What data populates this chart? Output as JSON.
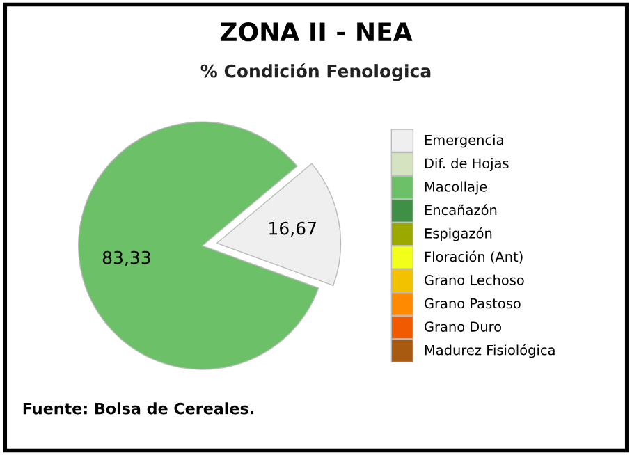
{
  "chart_data": {
    "type": "pie",
    "title": "ZONA II - NEA",
    "subtitle": "% Condición Fenologica",
    "categories": [
      "Emergencia",
      "Dif. de Hojas",
      "Macollaje",
      "Encañazón",
      "Espigazón",
      "Floración (Ant)",
      "Grano Lechoso",
      "Grano Pastoso",
      "Grano Duro",
      "Madurez Fisiológica"
    ],
    "values": [
      16.67,
      0,
      83.33,
      0,
      0,
      0,
      0,
      0,
      0,
      0
    ],
    "value_labels": [
      "16,67",
      null,
      "83,33",
      null,
      null,
      null,
      null,
      null,
      null,
      null
    ],
    "colors": [
      "#efefef",
      "#d5e3c0",
      "#6cc068",
      "#3f8f47",
      "#9aa800",
      "#f2ff1a",
      "#f2c200",
      "#ff8a00",
      "#f25a00",
      "#a85a10"
    ],
    "legend": "right",
    "annotations": [
      "Fuente: Bolsa de Cereales."
    ]
  }
}
